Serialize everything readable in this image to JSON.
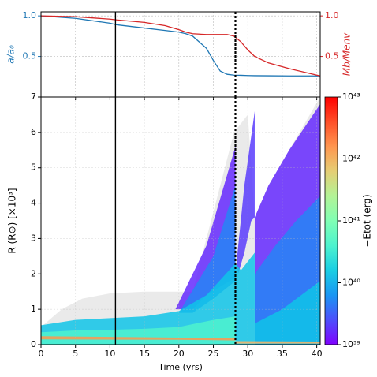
{
  "chart_data": [
    {
      "type": "line",
      "ylabel": "a/a₀",
      "y2label": "Mb/Menv",
      "x": [
        0,
        5,
        10,
        11,
        15,
        18,
        20,
        21,
        22,
        24,
        25,
        26,
        27,
        28,
        29,
        30,
        31,
        33,
        36,
        38,
        40.5
      ],
      "series": [
        {
          "name": "a/a₀",
          "color": "#1f77b4",
          "values": [
            1.0,
            0.97,
            0.91,
            0.89,
            0.85,
            0.82,
            0.8,
            0.78,
            0.75,
            0.6,
            0.45,
            0.32,
            0.28,
            0.27,
            0.268,
            0.265,
            0.263,
            0.262,
            0.26,
            0.26,
            0.26
          ]
        },
        {
          "name": "Mb/Menv",
          "color": "#d62728",
          "axis": "y2",
          "values": [
            1.0,
            0.99,
            0.96,
            0.95,
            0.92,
            0.88,
            0.83,
            0.8,
            0.78,
            0.77,
            0.77,
            0.77,
            0.77,
            0.75,
            0.68,
            0.58,
            0.5,
            0.42,
            0.35,
            0.31,
            0.26
          ]
        }
      ],
      "xlim": [
        0,
        40.5
      ],
      "xticks": [
        0,
        5,
        10,
        15,
        20,
        25,
        30,
        35,
        40
      ],
      "ylim": [
        0,
        1.05
      ],
      "yticks": [
        0.5,
        {
          "value": 1,
          "label": "1.0"
        }
      ],
      "y2lim": [
        0,
        1.05
      ],
      "y2ticks": [
        0.5,
        {
          "value": 1,
          "label": "1.0"
        }
      ],
      "grid": true,
      "vlines": [
        {
          "x": 10.8,
          "style": "solid"
        },
        {
          "x": 28.2,
          "style": "dashed"
        }
      ]
    },
    {
      "type": "density",
      "xlabel": "Time (yrs)",
      "ylabel": "R (R⊙) [×10³]",
      "colorbar_label": "−Etot (erg)",
      "xlim": [
        0,
        40.5
      ],
      "xticks": [
        0,
        5,
        10,
        15,
        20,
        25,
        30,
        35,
        40
      ],
      "ylim": [
        0,
        7
      ],
      "yticks": [
        0,
        1,
        2,
        3,
        4,
        5,
        6,
        7
      ],
      "clim": [
        1e+39,
        1e+43
      ],
      "log_color": true,
      "colormap": "rainbow",
      "cticks": [
        {
          "value": 1e+39,
          "label": "10³⁹"
        },
        {
          "value": 1e+40,
          "label": "10⁴⁰"
        },
        {
          "value": 1e+41,
          "label": "10⁴¹"
        },
        {
          "value": 1e+42,
          "label": "10⁴²"
        },
        {
          "value": 1e+43,
          "label": "10⁴³"
        }
      ],
      "grid": true,
      "vlines": [
        {
          "x": 10.8,
          "style": "solid"
        },
        {
          "x": 28.2,
          "style": "dashed"
        }
      ],
      "regions": [
        {
          "color": "#dcdcdc",
          "points": [
            [
              0,
              0
            ],
            [
              0,
              0.5
            ],
            [
              3,
              1.0
            ],
            [
              6,
              1.3
            ],
            [
              10,
              1.45
            ],
            [
              15,
              1.5
            ],
            [
              20,
              1.5
            ],
            [
              22,
              1.5
            ],
            [
              28,
              6
            ],
            [
              30,
              6.5
            ],
            [
              31,
              3.6
            ],
            [
              33,
              4.5
            ],
            [
              40.5,
              7
            ],
            [
              40.5,
              0
            ]
          ]
        },
        {
          "energy": 1.6e+39,
          "points": [
            [
              31,
              0
            ],
            [
              31,
              3.6
            ],
            [
              33,
              4.5
            ],
            [
              36,
              5.5
            ],
            [
              40.5,
              6.8
            ],
            [
              40.5,
              0
            ]
          ]
        },
        {
          "energy": 5e+39,
          "points": [
            [
              31,
              0
            ],
            [
              31,
              2.0
            ],
            [
              34,
              2.8
            ],
            [
              37,
              3.5
            ],
            [
              40.5,
              4.2
            ],
            [
              40.5,
              0
            ]
          ]
        },
        {
          "energy": 1.3e+40,
          "points": [
            [
              31,
              0
            ],
            [
              31,
              0.6
            ],
            [
              35,
              1.0
            ],
            [
              40.5,
              1.8
            ],
            [
              40.5,
              0
            ]
          ]
        },
        {
          "energy": 1.6e+39,
          "points": [
            [
              19.5,
              1.0
            ],
            [
              24,
              2.8
            ],
            [
              28.2,
              5.6
            ],
            [
              28.2,
              1.9
            ],
            [
              24,
              1.4
            ],
            [
              22,
              1.0
            ]
          ]
        },
        {
          "energy": 2e+39,
          "points": [
            [
              28.4,
              2.4
            ],
            [
              29.5,
              4.5
            ],
            [
              31,
              6.6
            ],
            [
              31,
              3.6
            ],
            [
              30.5,
              3.5
            ],
            [
              29.5,
              2.6
            ],
            [
              28.6,
              2.0
            ]
          ]
        },
        {
          "energy": 5e+39,
          "points": [
            [
              20,
              0.9
            ],
            [
              25,
              2.5
            ],
            [
              28.2,
              4.5
            ],
            [
              28.2,
              1.8
            ],
            [
              25,
              1.3
            ],
            [
              22,
              0.9
            ]
          ]
        },
        {
          "energy": 1.3e+40,
          "points": [
            [
              0,
              0
            ],
            [
              0,
              0.55
            ],
            [
              5,
              0.7
            ],
            [
              10,
              0.75
            ],
            [
              15,
              0.8
            ],
            [
              20,
              0.95
            ],
            [
              24,
              1.4
            ],
            [
              28.2,
              2.3
            ],
            [
              29,
              2.1
            ],
            [
              31,
              2.6
            ],
            [
              31,
              0
            ]
          ]
        },
        {
          "energy": 4e+40,
          "points": [
            [
              0,
              0
            ],
            [
              0,
              0.35
            ],
            [
              5,
              0.4
            ],
            [
              10,
              0.42
            ],
            [
              15,
              0.45
            ],
            [
              20,
              0.5
            ],
            [
              25,
              0.7
            ],
            [
              28.2,
              0.8
            ],
            [
              28.2,
              0
            ]
          ]
        },
        {
          "energy": 1.6e+42,
          "points": [
            [
              0,
              0.16
            ],
            [
              0,
              0.24
            ],
            [
              10,
              0.22
            ],
            [
              20,
              0.2
            ],
            [
              28.2,
              0.18
            ],
            [
              28.2,
              0.12
            ],
            [
              20,
              0.14
            ],
            [
              0,
              0.15
            ]
          ]
        },
        {
          "energy": 1e+42,
          "points": [
            [
              28.2,
              0.03
            ],
            [
              28.2,
              0.1
            ],
            [
              40.5,
              0.09
            ],
            [
              40.5,
              0.03
            ]
          ]
        }
      ]
    }
  ]
}
